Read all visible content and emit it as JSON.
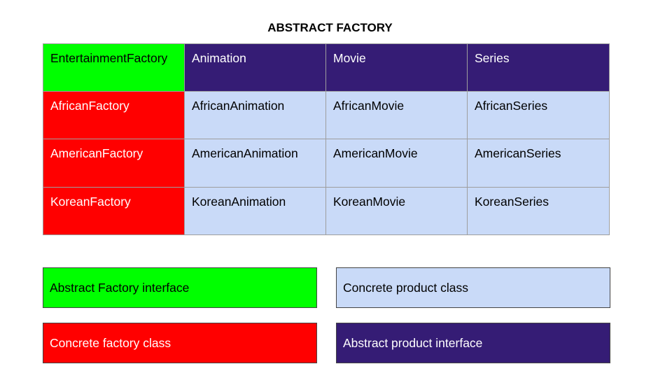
{
  "title": "ABSTRACT FACTORY",
  "table": {
    "header": [
      "EntertainmentFactory",
      "Animation",
      "Movie",
      "Series"
    ],
    "rows": [
      [
        "AfricanFactory",
        "AfricanAnimation",
        "AfricanMovie",
        "AfricanSeries"
      ],
      [
        "AmericanFactory",
        "AmericanAnimation",
        "AmericanMovie",
        "AmericanSeries"
      ],
      [
        "KoreanFactory",
        "KoreanAnimation",
        "KoreanMovie",
        "KoreanSeries"
      ]
    ]
  },
  "legend": {
    "abstract_factory": "Abstract Factory interface",
    "concrete_product": "Concrete product class",
    "concrete_factory": "Concrete factory class",
    "abstract_product": "Abstract product interface"
  },
  "colors": {
    "abstract_factory": "#00ff00",
    "concrete_factory": "#ff0000",
    "abstract_product": "#351c75",
    "concrete_product": "#c9daf8"
  }
}
